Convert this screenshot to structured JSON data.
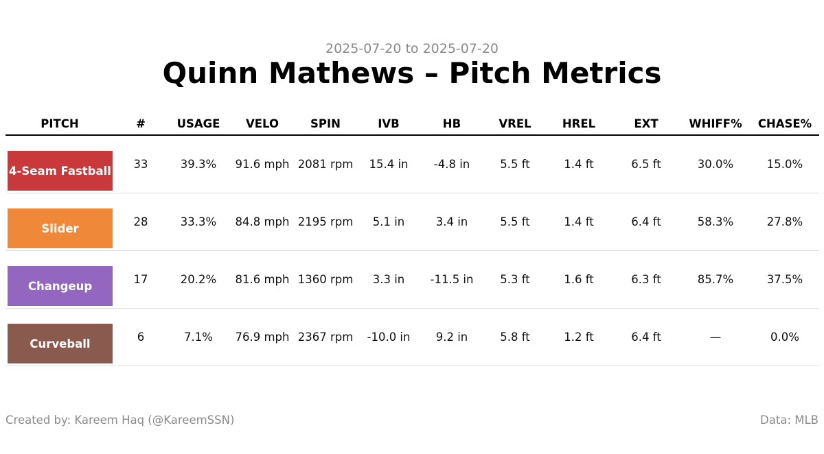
{
  "subtitle": "2025-07-20 to 2025-07-20",
  "title": "Quinn Mathews – Pitch Metrics",
  "footer": {
    "credit": "Created by: Kareem Haq (@KareemSSN)",
    "source": "Data: MLB"
  },
  "chart_data": {
    "type": "table",
    "columns": [
      "PITCH",
      "#",
      "USAGE",
      "VELO",
      "SPIN",
      "IVB",
      "HB",
      "VREL",
      "HREL",
      "EXT",
      "WHIFF%",
      "CHASE%"
    ],
    "rows": [
      {
        "pitch": "4-Seam Fastball",
        "color": "#c9383a",
        "count": "33",
        "usage": "39.3%",
        "velo": "91.6 mph",
        "spin": "2081 rpm",
        "ivb": "15.4 in",
        "hb": "-4.8 in",
        "vrel": "5.5 ft",
        "hrel": "1.4 ft",
        "ext": "6.5 ft",
        "whiff": "30.0%",
        "chase": "15.0%"
      },
      {
        "pitch": "Slider",
        "color": "#f0883a",
        "count": "28",
        "usage": "33.3%",
        "velo": "84.8 mph",
        "spin": "2195 rpm",
        "ivb": "5.1 in",
        "hb": "3.4 in",
        "vrel": "5.5 ft",
        "hrel": "1.4 ft",
        "ext": "6.4 ft",
        "whiff": "58.3%",
        "chase": "27.8%"
      },
      {
        "pitch": "Changeup",
        "color": "#9367bf",
        "count": "17",
        "usage": "20.2%",
        "velo": "81.6 mph",
        "spin": "1360 rpm",
        "ivb": "3.3 in",
        "hb": "-11.5 in",
        "vrel": "5.3 ft",
        "hrel": "1.6 ft",
        "ext": "6.3 ft",
        "whiff": "85.7%",
        "chase": "37.5%"
      },
      {
        "pitch": "Curveball",
        "color": "#8a5a4e",
        "count": "6",
        "usage": "7.1%",
        "velo": "76.9 mph",
        "spin": "2367 rpm",
        "ivb": "-10.0 in",
        "hb": "9.2 in",
        "vrel": "5.8 ft",
        "hrel": "1.2 ft",
        "ext": "6.4 ft",
        "whiff": "—",
        "chase": "0.0%"
      }
    ]
  }
}
